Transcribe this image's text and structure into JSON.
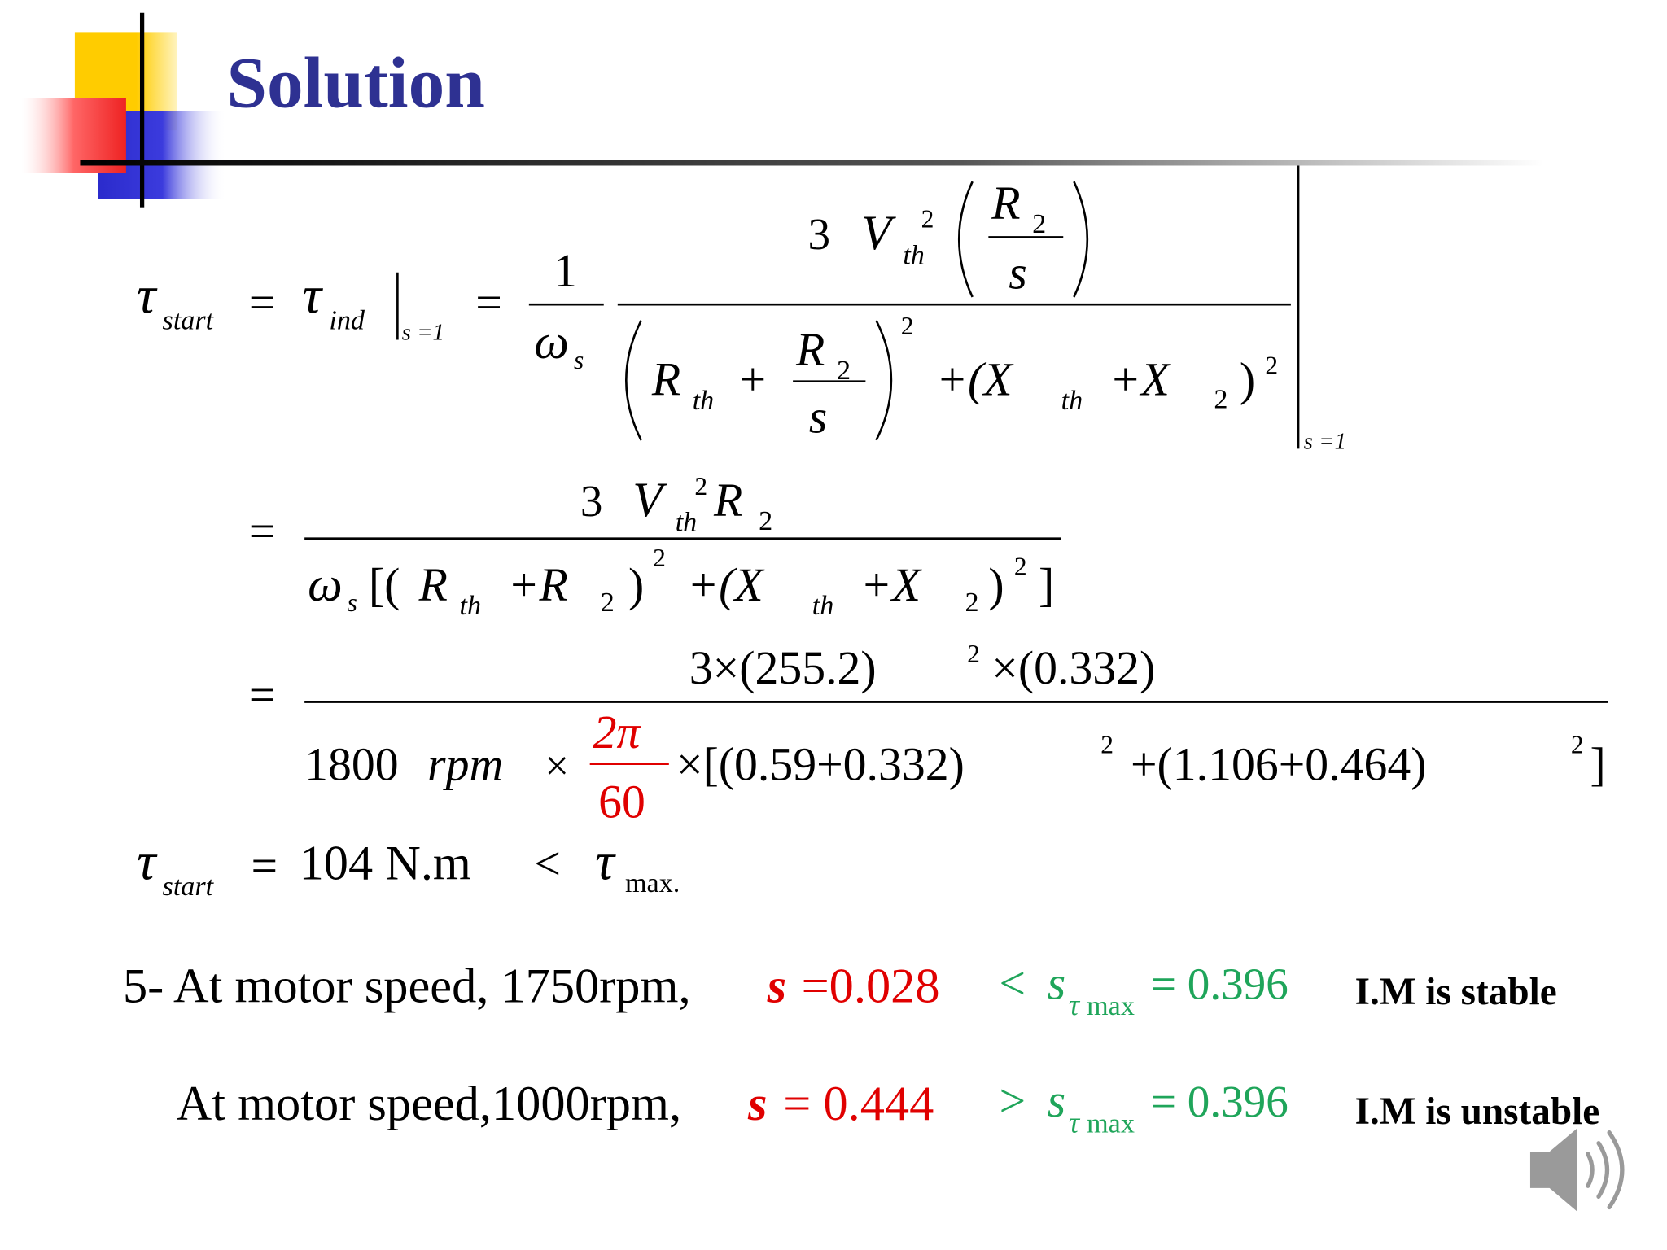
{
  "title": "Solution",
  "lines": [
    [
      "τ",
      "start",
      "=",
      "τ",
      "ind",
      "s =1",
      "=",
      "1",
      "ω",
      "s",
      "3",
      "V",
      "2",
      "th",
      "R",
      "2",
      "s",
      "R",
      "th",
      "+",
      "R",
      "2",
      "s",
      "2",
      "+(X",
      "th",
      "+X",
      "2",
      ")",
      "2",
      "s =1"
    ],
    [
      "=",
      "3",
      "V",
      "2",
      "th",
      "R",
      "2",
      "ω",
      "s",
      "[(",
      "R",
      "th",
      "+R",
      "2",
      ")",
      "2",
      "+(X",
      "th",
      "+X",
      "2",
      ")",
      "2",
      "]"
    ],
    [
      "=",
      "3×(255.2)",
      "2",
      "×(0.332)",
      "1800",
      "rpm",
      "×",
      "2π",
      "60",
      "×[(0.59+0.332)",
      "2",
      "+(1.106+0.464)",
      "2",
      "]"
    ],
    [
      "τ",
      "start",
      "=",
      "104 N.m",
      "<",
      "τ",
      "max."
    ],
    [
      "5- At motor speed, 1750rpm,",
      "s",
      "=0.028",
      "<",
      "s",
      "τ",
      "max",
      "= 0.396",
      "I.M is stable"
    ],
    [
      "At motor speed,1000rpm,",
      "s",
      "= 0.444",
      ">",
      "s",
      "τ",
      "max",
      "= 0.396",
      "I.M is unstable"
    ]
  ]
}
